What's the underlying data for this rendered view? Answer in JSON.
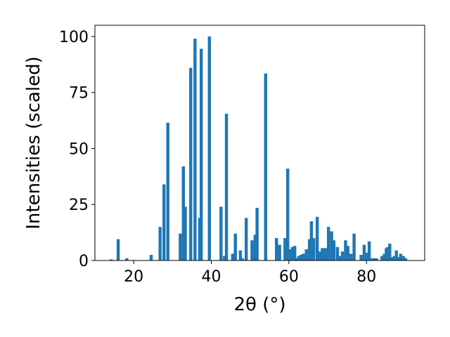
{
  "chart_data": {
    "type": "bar",
    "xlabel": "2θ (°)",
    "ylabel": "Intensities (scaled)",
    "xlim": [
      10,
      95
    ],
    "ylim": [
      0,
      105
    ],
    "xticks": [
      20,
      40,
      60,
      80
    ],
    "yticks": [
      0,
      25,
      50,
      75,
      100
    ],
    "grid": false,
    "bar_width": 0.8,
    "color": "#1f77b4",
    "x": [
      14.2,
      16.0,
      18.2,
      24.5,
      26.8,
      27.8,
      28.8,
      32.0,
      32.8,
      33.3,
      34.7,
      35.8,
      37.0,
      37.4,
      39.5,
      42.5,
      43.4,
      43.9,
      45.5,
      46.2,
      47.5,
      48.0,
      49.0,
      50.5,
      50.9,
      51.3,
      51.8,
      54.0,
      56.8,
      57.1,
      57.6,
      59.0,
      59.7,
      60.2,
      60.9,
      61.5,
      62.0,
      62.5,
      63.1,
      63.7,
      64.5,
      65.3,
      65.8,
      66.4,
      67.3,
      68.0,
      68.6,
      69.2,
      69.7,
      70.2,
      71.0,
      71.6,
      72.5,
      73.2,
      73.8,
      74.6,
      75.2,
      76.0,
      76.8,
      78.6,
      79.4,
      80.2,
      80.7,
      81.3,
      82.0,
      82.6,
      84.0,
      84.6,
      85.1,
      85.5,
      86.0,
      86.5,
      87.2,
      87.7,
      88.3,
      88.8,
      89.5,
      90.1
    ],
    "values": [
      0.5,
      9.5,
      1.0,
      2.5,
      15.0,
      34.0,
      61.5,
      12.0,
      42.0,
      24.0,
      86.0,
      99.0,
      19.0,
      94.5,
      100.0,
      24.0,
      2.0,
      65.5,
      3.0,
      12.0,
      4.5,
      1.0,
      19.0,
      9.0,
      3.5,
      11.5,
      23.5,
      83.5,
      10.0,
      1.0,
      7.0,
      10.0,
      41.0,
      5.0,
      6.0,
      6.5,
      1.0,
      2.0,
      2.5,
      3.0,
      5.0,
      9.5,
      17.5,
      10.0,
      19.5,
      4.0,
      5.5,
      5.5,
      5.5,
      15.0,
      13.0,
      9.0,
      6.0,
      2.0,
      4.0,
      9.0,
      6.5,
      3.0,
      12.0,
      2.5,
      7.0,
      3.5,
      8.5,
      1.0,
      1.0,
      1.0,
      2.0,
      3.0,
      5.5,
      6.0,
      7.5,
      1.5,
      2.0,
      4.5,
      1.5,
      3.0,
      2.0,
      1.0
    ]
  }
}
